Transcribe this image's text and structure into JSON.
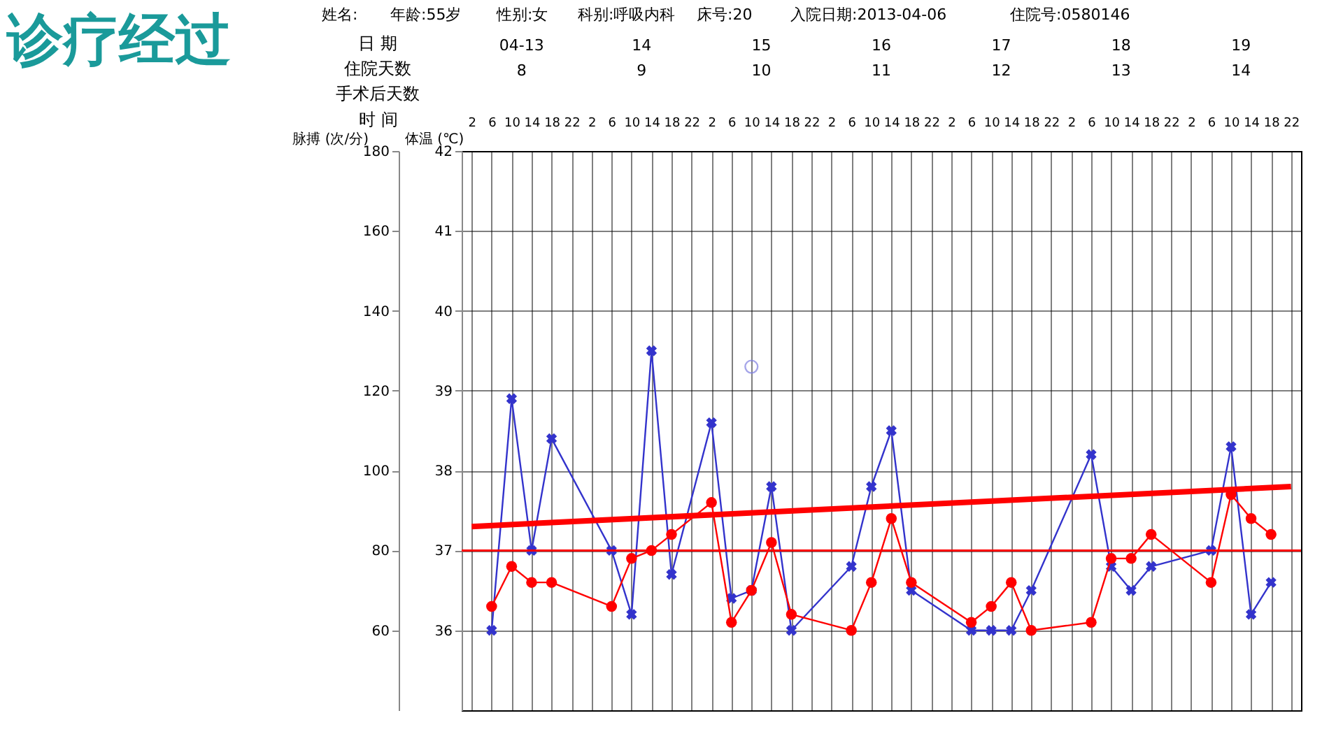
{
  "chart_data": {
    "type": "line",
    "title": "诊疗经过",
    "annotations": [
      "姓名:",
      "年龄:55岁",
      "性别:女",
      "科别:呼吸内科",
      "床号:20",
      "入院日期:2013-04-06",
      "住院号:0580146",
      "日 期",
      "04-13",
      "14",
      "15",
      "16",
      "17",
      "18",
      "19",
      "住院天数",
      "8",
      "9",
      "10",
      "11",
      "12",
      "13",
      "14",
      "手术后天数"
    ],
    "xlabel": "时 间",
    "ylabel": "脉搏 (次/分)",
    "y2label": "体温 (℃)",
    "categories": [
      "2",
      "6",
      "10",
      "14",
      "18",
      "22",
      "2",
      "6",
      "10",
      "14",
      "18",
      "22",
      "2",
      "6",
      "10",
      "14",
      "18",
      "22",
      "2",
      "6",
      "10",
      "14",
      "18",
      "22",
      "2",
      "6",
      "10",
      "14",
      "18",
      "22",
      "2",
      "6",
      "10",
      "14",
      "18",
      "22",
      "2",
      "6",
      "10",
      "14",
      "18",
      "22"
    ],
    "ylim": [
      40,
      180
    ],
    "yticks": [
      60,
      80,
      100,
      120,
      140,
      160,
      180
    ],
    "y2lim": [
      35,
      42
    ],
    "y2ticks": [
      36,
      37,
      38,
      39,
      40,
      41,
      42
    ],
    "grid": true,
    "line_style": "solid",
    "series": [
      {
        "marker": "cross",
        "color": "#3333cc",
        "values": [
          null,
          60,
          118,
          80,
          108,
          null,
          null,
          80,
          64,
          130,
          74,
          null,
          112,
          68,
          70,
          96,
          60,
          null,
          null,
          76,
          96,
          110,
          70,
          null,
          null,
          60,
          60,
          60,
          70,
          null,
          null,
          104,
          76,
          70,
          76,
          null,
          null,
          80,
          106,
          64,
          72,
          null
        ]
      },
      {
        "marker": "circle",
        "color": "#ff0000",
        "axis": "y2",
        "values": [
          null,
          36.3,
          36.8,
          36.6,
          36.6,
          null,
          null,
          36.3,
          36.9,
          37.0,
          37.2,
          null,
          37.6,
          36.1,
          36.5,
          37.1,
          36.2,
          null,
          null,
          36.0,
          36.6,
          37.4,
          36.6,
          null,
          null,
          36.1,
          36.3,
          36.6,
          36.0,
          null,
          null,
          36.1,
          36.9,
          36.9,
          37.2,
          null,
          null,
          36.6,
          37.7,
          37.4,
          37.2,
          null
        ]
      },
      {
        "type": "scatter",
        "marker": "circle",
        "color": "#8080e0",
        "values": [
          null,
          null,
          null,
          null,
          null,
          null,
          null,
          null,
          null,
          null,
          null,
          null,
          null,
          null,
          126,
          null,
          null,
          null,
          null,
          null,
          null,
          null,
          null,
          null,
          null,
          null,
          null,
          null,
          null,
          null,
          null,
          null,
          null,
          null,
          null,
          null,
          null,
          null,
          null,
          null,
          null,
          null
        ]
      },
      {
        "marker": "none",
        "color": "#ff0000",
        "axis": "y2",
        "values": [
          37.3,
          null,
          null,
          null,
          null,
          null,
          null,
          null,
          null,
          null,
          null,
          null,
          null,
          null,
          null,
          null,
          null,
          null,
          null,
          null,
          null,
          null,
          null,
          null,
          null,
          null,
          null,
          null,
          null,
          null,
          null,
          null,
          null,
          null,
          null,
          null,
          null,
          null,
          null,
          null,
          null,
          37.8
        ]
      }
    ],
    "ref_lines": [
      {
        "axis": "y2",
        "value": 37,
        "color": "#ff0000"
      }
    ]
  }
}
